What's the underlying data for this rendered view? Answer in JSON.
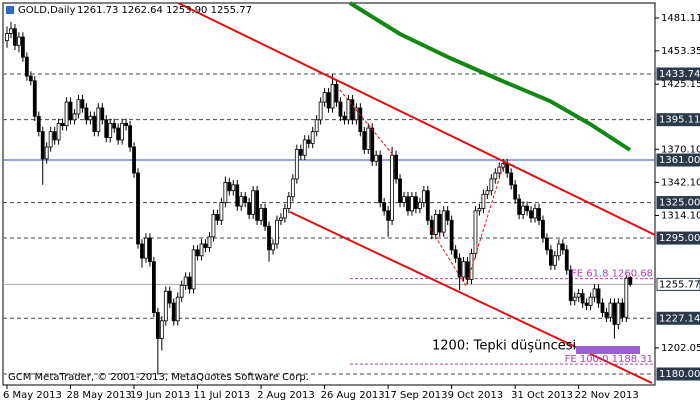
{
  "chart_data": {
    "type": "candlestick",
    "title": "GOLD,Daily",
    "quote": "1261.73 1262.64 1253.90 1255.77",
    "categories": [
      "6 May 2013",
      null,
      null,
      null,
      null,
      null,
      null,
      null,
      null,
      null,
      null,
      null,
      null,
      null,
      null,
      null,
      "28 May 2013",
      null,
      null,
      null,
      null,
      null,
      null,
      null,
      null,
      null,
      null,
      null,
      null,
      null,
      null,
      null,
      "19 Jun 2013",
      null,
      null,
      null,
      null,
      null,
      null,
      null,
      null,
      null,
      null,
      null,
      null,
      null,
      null,
      null,
      "11 Jul 2013",
      null,
      null,
      null,
      null,
      null,
      null,
      null,
      null,
      null,
      null,
      null,
      null,
      null,
      null,
      null,
      "2 Aug 2013",
      null,
      null,
      null,
      null,
      null,
      null,
      null,
      null,
      null,
      null,
      null,
      null,
      null,
      null,
      null,
      "26 Aug 2013",
      null,
      null,
      null,
      null,
      null,
      null,
      null,
      null,
      null,
      null,
      null,
      null,
      null,
      null,
      null,
      "17 Sep 2013",
      null,
      null,
      null,
      null,
      null,
      null,
      null,
      null,
      null,
      null,
      null,
      null,
      null,
      null,
      null,
      "9 Oct 2013",
      null,
      null,
      null,
      null,
      null,
      null,
      null,
      null,
      null,
      null,
      null,
      null,
      null,
      null,
      null,
      "31 Oct 2013",
      null,
      null,
      null,
      null,
      null,
      null,
      null,
      null,
      null,
      null,
      null,
      null,
      null,
      null,
      null,
      "22 Nov 2013",
      null,
      null,
      null,
      null,
      null,
      null,
      null,
      null,
      null,
      null,
      null,
      null,
      null
    ],
    "ohlc": [
      [
        1462,
        1474,
        1456,
        1468
      ],
      [
        1468,
        1478,
        1464,
        1472
      ],
      [
        1472,
        1476,
        1454,
        1458
      ],
      [
        1458,
        1469,
        1452,
        1465
      ],
      [
        1465,
        1469,
        1444,
        1448
      ],
      [
        1448,
        1452,
        1428,
        1432
      ],
      [
        1432,
        1436,
        1424,
        1428
      ],
      [
        1428,
        1432,
        1394,
        1398
      ],
      [
        1398,
        1402,
        1381,
        1385
      ],
      [
        1385,
        1389,
        1340,
        1362
      ],
      [
        1362,
        1376,
        1358,
        1372
      ],
      [
        1372,
        1389,
        1368,
        1385
      ],
      [
        1385,
        1389,
        1374,
        1378
      ],
      [
        1378,
        1396,
        1374,
        1392
      ],
      [
        1392,
        1396,
        1386,
        1390
      ],
      [
        1390,
        1414,
        1386,
        1410
      ],
      [
        1410,
        1414,
        1391,
        1395
      ],
      [
        1395,
        1404,
        1391,
        1400
      ],
      [
        1400,
        1416,
        1396,
        1412
      ],
      [
        1412,
        1416,
        1401,
        1405
      ],
      [
        1405,
        1409,
        1391,
        1395
      ],
      [
        1395,
        1402,
        1391,
        1398
      ],
      [
        1398,
        1402,
        1381,
        1385
      ],
      [
        1385,
        1409,
        1381,
        1405
      ],
      [
        1405,
        1409,
        1391,
        1395
      ],
      [
        1395,
        1399,
        1376,
        1380
      ],
      [
        1380,
        1396,
        1376,
        1392
      ],
      [
        1392,
        1396,
        1384,
        1388
      ],
      [
        1388,
        1392,
        1374,
        1378
      ],
      [
        1378,
        1396,
        1374,
        1392
      ],
      [
        1392,
        1396,
        1386,
        1390
      ],
      [
        1390,
        1394,
        1368,
        1372
      ],
      [
        1372,
        1376,
        1346,
        1350
      ],
      [
        1350,
        1354,
        1286,
        1290
      ],
      [
        1290,
        1294,
        1270,
        1278
      ],
      [
        1278,
        1299,
        1274,
        1295
      ],
      [
        1295,
        1299,
        1271,
        1275
      ],
      [
        1275,
        1279,
        1228,
        1232
      ],
      [
        1232,
        1236,
        1180,
        1210
      ],
      [
        1210,
        1229,
        1200,
        1225
      ],
      [
        1225,
        1254,
        1221,
        1250
      ],
      [
        1250,
        1254,
        1236,
        1240
      ],
      [
        1240,
        1244,
        1221,
        1225
      ],
      [
        1225,
        1249,
        1221,
        1245
      ],
      [
        1245,
        1259,
        1241,
        1255
      ],
      [
        1255,
        1266,
        1251,
        1262
      ],
      [
        1262,
        1266,
        1248,
        1252
      ],
      [
        1252,
        1289,
        1248,
        1285
      ],
      [
        1285,
        1289,
        1276,
        1280
      ],
      [
        1280,
        1294,
        1276,
        1290
      ],
      [
        1290,
        1294,
        1283,
        1287
      ],
      [
        1287,
        1300,
        1283,
        1296
      ],
      [
        1296,
        1319,
        1292,
        1315
      ],
      [
        1315,
        1319,
        1306,
        1310
      ],
      [
        1310,
        1329,
        1306,
        1325
      ],
      [
        1325,
        1347,
        1321,
        1342
      ],
      [
        1342,
        1346,
        1331,
        1335
      ],
      [
        1335,
        1344,
        1331,
        1340
      ],
      [
        1340,
        1344,
        1318,
        1322
      ],
      [
        1322,
        1334,
        1318,
        1330
      ],
      [
        1330,
        1334,
        1321,
        1325
      ],
      [
        1325,
        1329,
        1311,
        1315
      ],
      [
        1315,
        1339,
        1311,
        1335
      ],
      [
        1335,
        1339,
        1306,
        1310
      ],
      [
        1310,
        1324,
        1306,
        1320
      ],
      [
        1320,
        1324,
        1301,
        1305
      ],
      [
        1305,
        1309,
        1275,
        1285
      ],
      [
        1285,
        1294,
        1281,
        1290
      ],
      [
        1290,
        1314,
        1286,
        1310
      ],
      [
        1310,
        1316,
        1306,
        1312
      ],
      [
        1312,
        1324,
        1308,
        1320
      ],
      [
        1320,
        1334,
        1316,
        1330
      ],
      [
        1330,
        1349,
        1326,
        1345
      ],
      [
        1345,
        1374,
        1341,
        1370
      ],
      [
        1370,
        1374,
        1361,
        1365
      ],
      [
        1365,
        1382,
        1361,
        1378
      ],
      [
        1378,
        1382,
        1371,
        1375
      ],
      [
        1375,
        1389,
        1371,
        1385
      ],
      [
        1385,
        1399,
        1381,
        1395
      ],
      [
        1395,
        1414,
        1391,
        1410
      ],
      [
        1410,
        1422,
        1406,
        1418
      ],
      [
        1418,
        1422,
        1401,
        1405
      ],
      [
        1405,
        1434,
        1401,
        1425
      ],
      [
        1425,
        1429,
        1406,
        1410
      ],
      [
        1410,
        1414,
        1394,
        1398
      ],
      [
        1398,
        1402,
        1391,
        1395
      ],
      [
        1395,
        1416,
        1391,
        1412
      ],
      [
        1412,
        1416,
        1391,
        1395
      ],
      [
        1395,
        1409,
        1391,
        1405
      ],
      [
        1405,
        1409,
        1381,
        1385
      ],
      [
        1385,
        1389,
        1366,
        1370
      ],
      [
        1370,
        1392,
        1366,
        1388
      ],
      [
        1388,
        1392,
        1356,
        1360
      ],
      [
        1360,
        1369,
        1356,
        1365
      ],
      [
        1365,
        1369,
        1321,
        1325
      ],
      [
        1325,
        1329,
        1314,
        1318
      ],
      [
        1318,
        1322,
        1296,
        1310
      ],
      [
        1310,
        1372,
        1306,
        1365
      ],
      [
        1365,
        1369,
        1341,
        1345
      ],
      [
        1345,
        1349,
        1321,
        1325
      ],
      [
        1325,
        1334,
        1321,
        1330
      ],
      [
        1330,
        1334,
        1314,
        1318
      ],
      [
        1318,
        1334,
        1314,
        1330
      ],
      [
        1330,
        1334,
        1316,
        1320
      ],
      [
        1320,
        1329,
        1316,
        1325
      ],
      [
        1325,
        1339,
        1321,
        1335
      ],
      [
        1335,
        1339,
        1306,
        1310
      ],
      [
        1310,
        1314,
        1294,
        1298
      ],
      [
        1298,
        1319,
        1294,
        1315
      ],
      [
        1315,
        1319,
        1296,
        1300
      ],
      [
        1300,
        1322,
        1296,
        1318
      ],
      [
        1318,
        1322,
        1306,
        1310
      ],
      [
        1310,
        1314,
        1281,
        1285
      ],
      [
        1285,
        1289,
        1274,
        1278
      ],
      [
        1278,
        1282,
        1251,
        1262
      ],
      [
        1262,
        1279,
        1258,
        1275
      ],
      [
        1275,
        1279,
        1256,
        1260
      ],
      [
        1260,
        1286,
        1256,
        1282
      ],
      [
        1282,
        1322,
        1278,
        1318
      ],
      [
        1318,
        1324,
        1314,
        1320
      ],
      [
        1320,
        1336,
        1316,
        1332
      ],
      [
        1332,
        1339,
        1328,
        1335
      ],
      [
        1335,
        1349,
        1331,
        1345
      ],
      [
        1345,
        1354,
        1341,
        1350
      ],
      [
        1350,
        1359,
        1346,
        1355
      ],
      [
        1355,
        1362,
        1351,
        1358
      ],
      [
        1358,
        1362,
        1346,
        1350
      ],
      [
        1350,
        1354,
        1336,
        1340
      ],
      [
        1340,
        1344,
        1324,
        1328
      ],
      [
        1328,
        1332,
        1311,
        1315
      ],
      [
        1315,
        1326,
        1311,
        1322
      ],
      [
        1322,
        1326,
        1314,
        1318
      ],
      [
        1318,
        1322,
        1308,
        1312
      ],
      [
        1312,
        1324,
        1308,
        1320
      ],
      [
        1320,
        1324,
        1306,
        1310
      ],
      [
        1310,
        1314,
        1291,
        1295
      ],
      [
        1295,
        1299,
        1281,
        1285
      ],
      [
        1285,
        1289,
        1268,
        1272
      ],
      [
        1272,
        1284,
        1268,
        1280
      ],
      [
        1280,
        1294,
        1276,
        1290
      ],
      [
        1290,
        1294,
        1281,
        1285
      ],
      [
        1285,
        1289,
        1264,
        1268
      ],
      [
        1268,
        1272,
        1238,
        1242
      ],
      [
        1242,
        1249,
        1238,
        1245
      ],
      [
        1245,
        1252,
        1241,
        1248
      ],
      [
        1248,
        1252,
        1236,
        1240
      ],
      [
        1240,
        1244,
        1234,
        1238
      ],
      [
        1238,
        1249,
        1234,
        1245
      ],
      [
        1245,
        1256,
        1241,
        1252
      ],
      [
        1252,
        1256,
        1236,
        1240
      ],
      [
        1240,
        1244,
        1228,
        1232
      ],
      [
        1232,
        1236,
        1224,
        1228
      ],
      [
        1228,
        1244,
        1224,
        1240
      ],
      [
        1240,
        1244,
        1210,
        1222
      ],
      [
        1222,
        1244,
        1218,
        1240
      ],
      [
        1240,
        1244,
        1224,
        1228
      ],
      [
        1228,
        1264,
        1224,
        1261
      ],
      [
        1261.73,
        1262.64,
        1253.9,
        1255.77
      ]
    ],
    "ylim": [
      1170.7,
      1493.8
    ],
    "yticks": [
      {
        "value": 1481.11,
        "label": "1481.11"
      },
      {
        "value": 1453.35,
        "label": "1453.35"
      },
      {
        "value": 1425.15,
        "label": "1425.15"
      },
      {
        "value": 1370.1,
        "label": "1370.10"
      },
      {
        "value": 1342.1,
        "label": "1342.10"
      },
      {
        "value": 1314.1,
        "label": "1314.10"
      },
      {
        "value": 1202.05,
        "label": "1202.05"
      }
    ],
    "levels": [
      {
        "value": 1433.74,
        "label": "1433.74",
        "style": "dashed",
        "color": "#3a4a5a"
      },
      {
        "value": 1395.11,
        "label": "1395.11",
        "style": "dashed",
        "color": "#3a4a5a"
      },
      {
        "value": 1361,
        "label": "1361.00",
        "style": "solid",
        "color": "#2a4bd7"
      },
      {
        "value": 1325,
        "label": "1325.00",
        "style": "dashed",
        "color": "#3a4a5a"
      },
      {
        "value": 1295,
        "label": "1295.00",
        "style": "dashed",
        "color": "#3a4a5a"
      },
      {
        "value": 1255.77,
        "label": "1255.77",
        "style": "solid",
        "color": "#a8a8a8"
      },
      {
        "value": 1227.14,
        "label": "1227.14",
        "style": "dashed",
        "color": "#3a4a5a"
      },
      {
        "value": 1180,
        "label": "1180.00",
        "style": "dashed",
        "color": "#3a4a5a"
      }
    ],
    "annotations": [
      {
        "text": "FE 61.8 1260.68",
        "value": 1260.68
      },
      {
        "text": "FE 100.0 1188.31",
        "value": 1188.31
      }
    ],
    "fe_color": "#b040b0",
    "note": "1200: Tepki düşüncesi",
    "footer": "GCM MetaTrader, © 2001-2013, MetaQuotes Software Corp.",
    "up_color": "#ffffff",
    "down_color": "#000000"
  }
}
